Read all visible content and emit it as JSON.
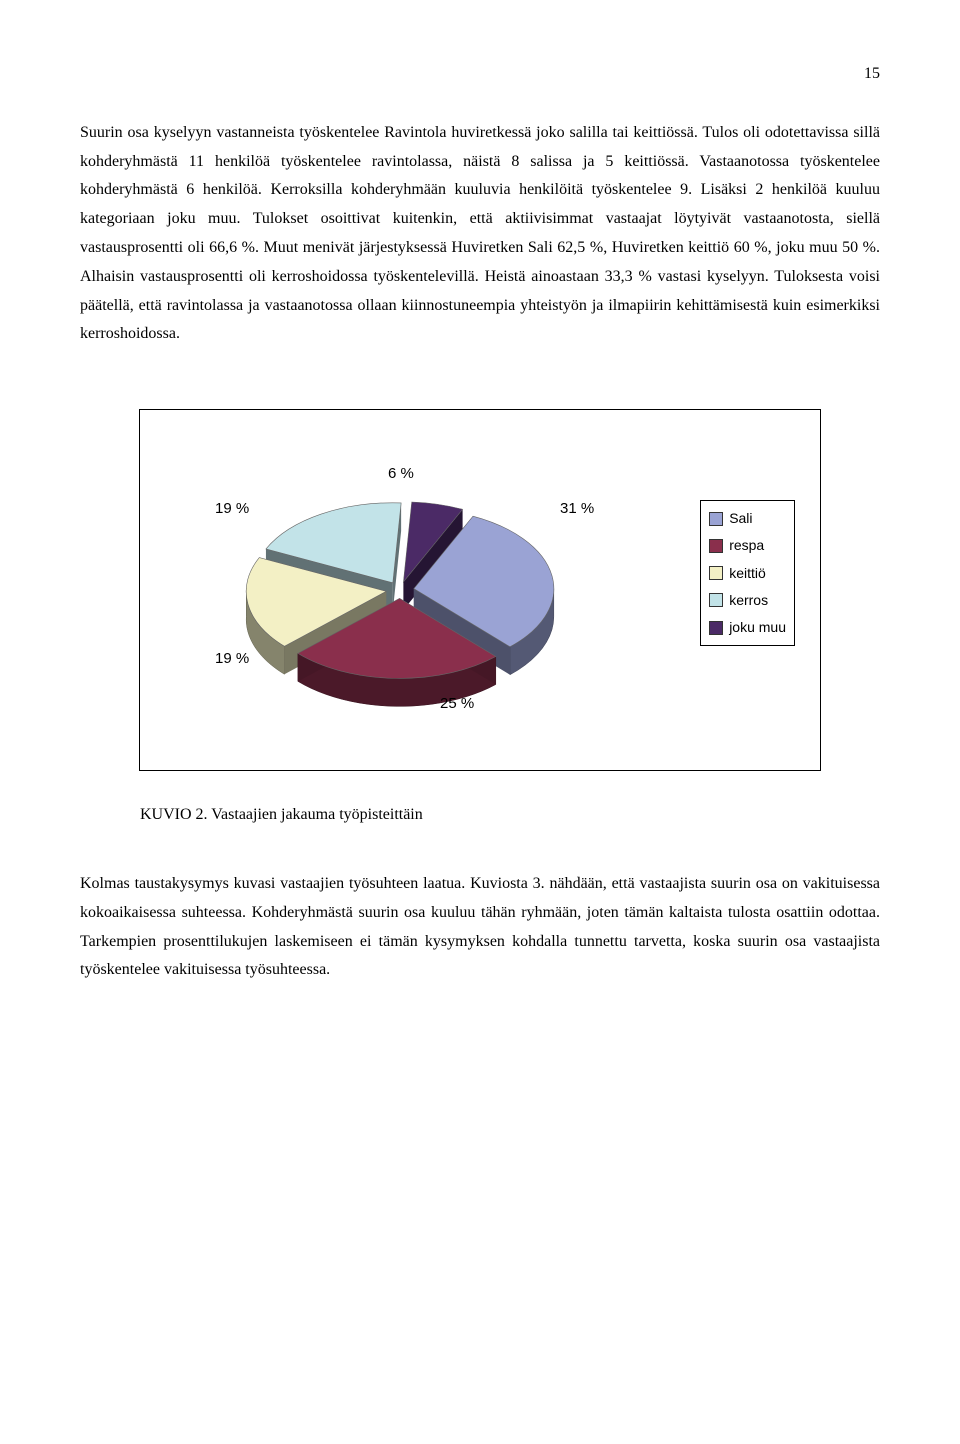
{
  "page_number": "15",
  "paragraph_1": "Suurin osa kyselyyn vastanneista työskentelee Ravintola huviretkessä joko salilla tai keittiössä. Tulos oli odotettavissa sillä kohderyhmästä 11 henkilöä työskentelee ravintolassa, näistä 8 salissa ja 5 keittiössä. Vastaanotossa työskentelee kohderyhmästä 6 henkilöä. Kerroksilla kohderyhmään kuuluvia henkilöitä työskentelee 9. Lisäksi 2 henkilöä kuuluu kategoriaan joku muu. Tulokset osoittivat kuitenkin, että aktiivisimmat vastaajat löytyivät vastaanotosta, siellä vastausprosentti oli 66,6 %. Muut menivät järjestyksessä Huviretken Sali 62,5 %, Huviretken keittiö 60 %, joku muu 50 %. Alhaisin vastausprosentti oli kerroshoidossa työskentelevillä. Heistä ainoastaan 33,3 % vastasi kyselyyn. Tuloksesta voisi päätellä, että ravintolassa ja vastaanotossa ollaan kiinnostuneempia yhteistyön ja ilmapiirin kehittämisestä kuin esimerkiksi kerroshoidossa.",
  "chart": {
    "type": "pie",
    "label_fontsize": 15,
    "label_font": "Arial",
    "slices": [
      {
        "label": "31 %",
        "value": 31,
        "color": "#9aa3d4",
        "legend": "Sali"
      },
      {
        "label": "25 %",
        "value": 25,
        "color": "#8a2f4c",
        "legend": "respa"
      },
      {
        "label": "19 %",
        "value": 19,
        "color": "#f3f0c5",
        "legend": "keittiö"
      },
      {
        "label": "19 %",
        "value": 19,
        "color": "#c2e3e8",
        "legend": "kerros"
      },
      {
        "label": "6 %",
        "value": 6,
        "color": "#4b2a66",
        "legend": "joku muu"
      }
    ],
    "legend_fontsize": 14,
    "side_color_dark": "#5b5b7a",
    "background": "#ffffff"
  },
  "caption": "KUVIO 2. Vastaajien jakauma työpisteittäin",
  "paragraph_2": "Kolmas taustakysymys kuvasi vastaajien työsuhteen laatua. Kuviosta 3. nähdään, että vastaajista suurin osa on vakituisessa kokoaikaisessa suhteessa. Kohderyhmästä suurin osa kuuluu tähän ryhmään, joten tämän kaltaista tulosta osattiin odottaa. Tarkempien prosenttilukujen laskemiseen ei tämän kysymyksen kohdalla tunnettu tarvetta, koska suurin osa vastaajista työskentelee vakituisessa työsuhteessa."
}
